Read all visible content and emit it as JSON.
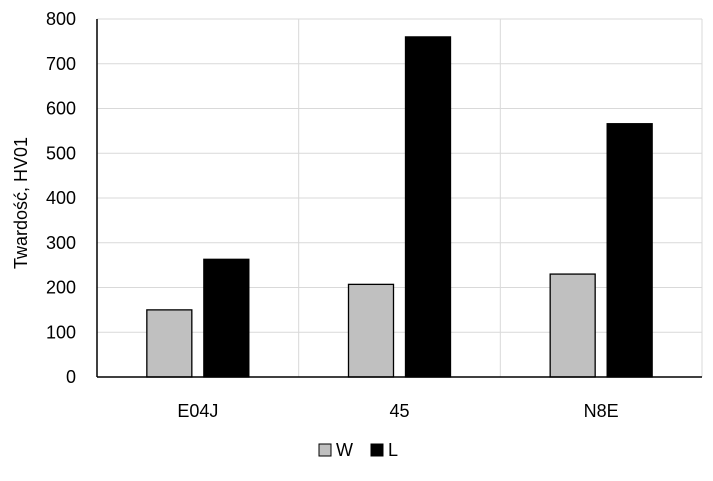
{
  "chart_data": {
    "type": "bar",
    "categories": [
      "E04J",
      "45",
      "N8E"
    ],
    "series": [
      {
        "name": "W",
        "values": [
          150,
          207,
          230
        ],
        "color": "#c0c0c0"
      },
      {
        "name": "L",
        "values": [
          263,
          760,
          566
        ],
        "color": "#000000"
      }
    ],
    "title": "",
    "xlabel": "",
    "ylabel": "Twardość, HV01",
    "ylim": [
      0,
      800
    ],
    "yticks": [
      0,
      100,
      200,
      300,
      400,
      500,
      600,
      700,
      800
    ],
    "grid": true,
    "legend_position": "bottom-center"
  }
}
